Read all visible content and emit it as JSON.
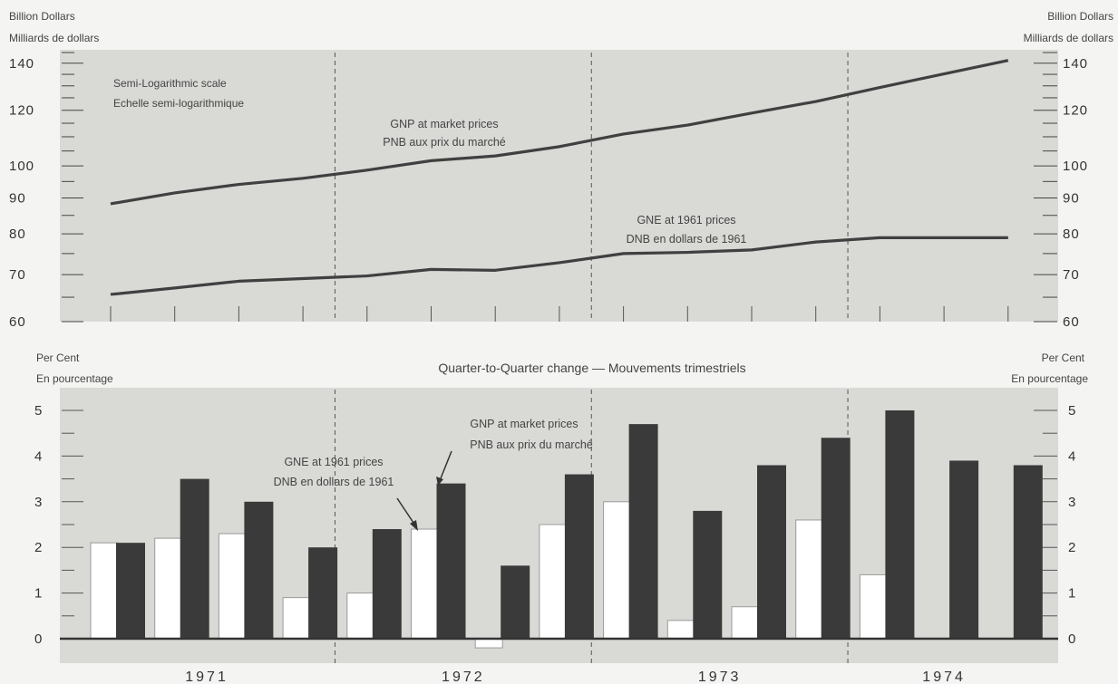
{
  "chart_data": [
    {
      "type": "line",
      "scale": "semi-logarithmic",
      "left_unit_en": "Billion Dollars",
      "left_unit_fr": "Milliards de dollars",
      "right_unit_en": "Billion Dollars",
      "right_unit_fr": "Milliards de dollars",
      "scale_note_en": "Semi-Logarithmic scale",
      "scale_note_fr": "Echelle semi-logarithmique",
      "yticks": [
        60,
        70,
        80,
        90,
        100,
        120,
        140
      ],
      "ylim": [
        60,
        145
      ],
      "quarters": [
        "1971 Q1",
        "1971 Q2",
        "1971 Q3",
        "1971 Q4",
        "1972 Q1",
        "1972 Q2",
        "1972 Q3",
        "1972 Q4",
        "1973 Q1",
        "1973 Q2",
        "1973 Q3",
        "1973 Q4",
        "1974 Q1",
        "1974 Q2",
        "1974 Q3"
      ],
      "series": [
        {
          "name": "GNP at market prices",
          "name_fr": "PNB aux prix du marché",
          "values": [
            88.3,
            91.5,
            94.1,
            96.0,
            98.6,
            101.7,
            103.3,
            106.5,
            111.0,
            114.3,
            118.9,
            123.5,
            129.3,
            135.2,
            141.3
          ]
        },
        {
          "name": "GNE at 1961 prices",
          "name_fr": "DNB en dollars de 1961",
          "values": [
            65.6,
            67.0,
            68.5,
            69.1,
            69.7,
            71.2,
            71.0,
            72.8,
            75.0,
            75.3,
            75.9,
            77.9,
            79.0,
            79.0,
            79.0
          ]
        }
      ]
    },
    {
      "type": "bar",
      "title": "Quarter-to-Quarter change — Mouvements trimestriels",
      "left_unit_en": "Per Cent",
      "left_unit_fr": "En pourcentage",
      "right_unit_en": "Per Cent",
      "right_unit_fr": "En pourcentage",
      "yticks": [
        0,
        1,
        2,
        3,
        4,
        5
      ],
      "ylim": [
        -0.2,
        5.5
      ],
      "years": [
        "1971",
        "1972",
        "1973",
        "1974"
      ],
      "quarters": [
        "1971 Q1",
        "1971 Q2",
        "1971 Q3",
        "1971 Q4",
        "1972 Q1",
        "1972 Q2",
        "1972 Q3",
        "1972 Q4",
        "1973 Q1",
        "1973 Q2",
        "1973 Q3",
        "1973 Q4",
        "1974 Q1",
        "1974 Q2",
        "1974 Q3"
      ],
      "series": [
        {
          "name": "GNE at 1961 prices",
          "name_fr": "DNB en dollars de 1961",
          "color": "#ffffff",
          "values": [
            2.1,
            2.2,
            2.3,
            0.9,
            1.0,
            2.4,
            -0.2,
            2.5,
            3.0,
            0.4,
            0.7,
            2.6,
            1.4,
            null,
            null
          ]
        },
        {
          "name": "GNP at market prices",
          "name_fr": "PNB aux prix du marché",
          "color": "#3a3a3a",
          "values": [
            2.1,
            3.5,
            3.0,
            2.0,
            2.4,
            3.4,
            1.6,
            3.6,
            4.7,
            2.8,
            3.8,
            4.4,
            5.0,
            3.9,
            3.8
          ]
        }
      ]
    }
  ]
}
